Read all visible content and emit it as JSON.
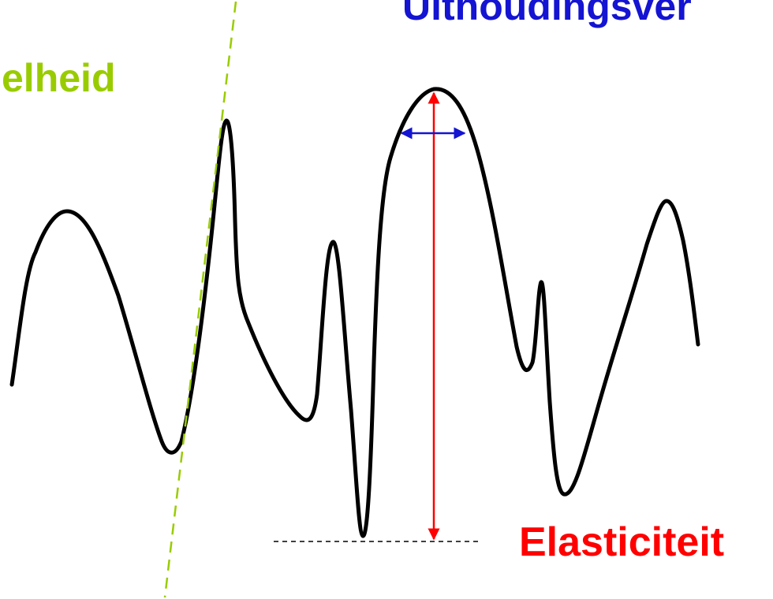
{
  "labels": {
    "speed": "elheid",
    "endurance": "Uithoudingsver",
    "elasticity": "Elasticiteit"
  },
  "colors": {
    "wave": "#000000",
    "speed": "#99cc00",
    "endurance": "#1414d2",
    "elasticity": "#ff0000",
    "baseline": "#000000"
  }
}
